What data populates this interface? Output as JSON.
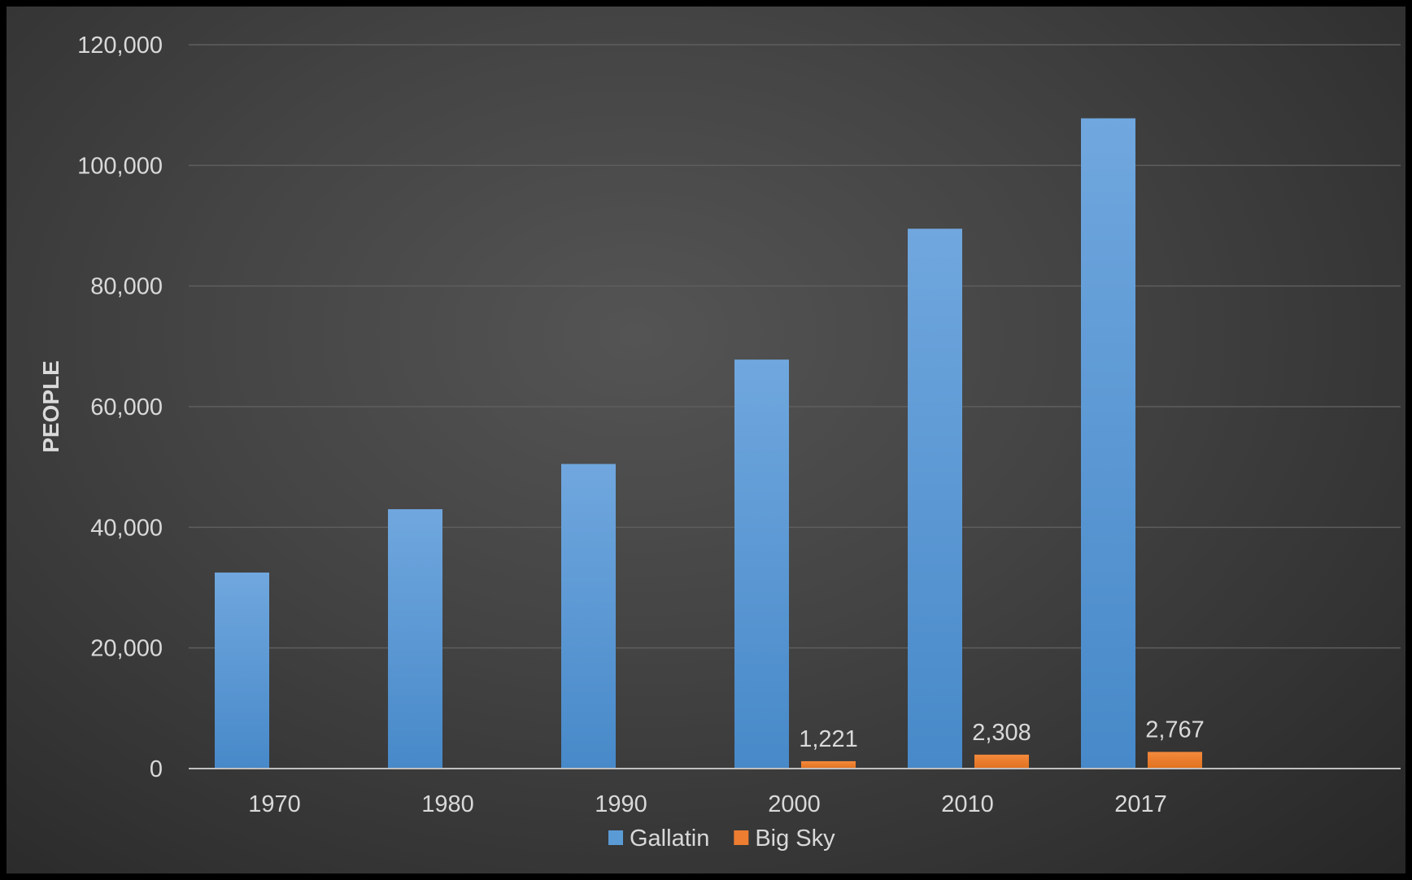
{
  "chart_data": {
    "type": "bar",
    "title": "",
    "xlabel": "",
    "ylabel": "PEOPLE",
    "categories": [
      "1970",
      "1980",
      "1990",
      "2000",
      "2010",
      "2017"
    ],
    "ylim": [
      0,
      120000
    ],
    "yticks": [
      0,
      20000,
      40000,
      60000,
      80000,
      100000,
      120000
    ],
    "ytick_labels": [
      "0",
      "20,000",
      "40,000",
      "60,000",
      "80,000",
      "100,000",
      "120,000"
    ],
    "grid": true,
    "legend": "bottom",
    "series": [
      {
        "name": "Gallatin",
        "color": "#5b9bd5",
        "values": [
          32500,
          43000,
          50500,
          67800,
          89500,
          107800
        ],
        "data_labels": [
          null,
          null,
          null,
          null,
          null,
          null
        ]
      },
      {
        "name": "Big Sky",
        "color": "#ed7d31",
        "values": [
          null,
          null,
          null,
          1221,
          2308,
          2767
        ],
        "data_labels": [
          null,
          null,
          null,
          "1,221",
          "2,308",
          "2,767"
        ]
      }
    ]
  }
}
